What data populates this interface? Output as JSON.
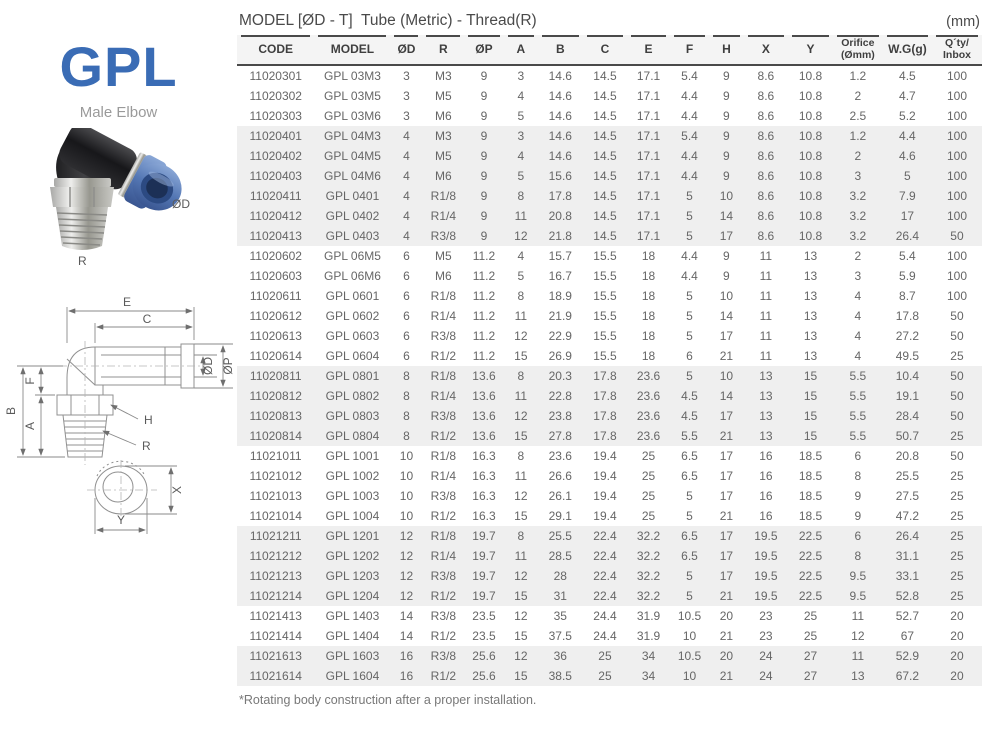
{
  "page": {
    "unit_label": "(mm)",
    "footnote": "*Rotating body construction after a proper installation."
  },
  "product": {
    "series": "GPL",
    "name": "Male Elbow",
    "brand_color": "#3a6cb5",
    "photo_labels": {
      "od": "ØD",
      "r": "R"
    },
    "drawing_labels": {
      "e": "E",
      "c": "C",
      "od": "ØD",
      "op": "ØP",
      "b": "B",
      "f": "F",
      "a": "A",
      "h": "H",
      "r": "R",
      "x": "X",
      "y": "Y"
    }
  },
  "table": {
    "title": "MODEL [ØD - T]  Tube (Metric) - Thread(R)",
    "columns": [
      "CODE",
      "MODEL",
      "ØD",
      "R",
      "ØP",
      "A",
      "B",
      "C",
      "E",
      "F",
      "H",
      "X",
      "Y",
      "Orifice\n(Ømm)",
      "W.G(g)",
      "Q´ty/\nInbox"
    ],
    "rows": [
      {
        "shaded": false,
        "cells": [
          "11020301",
          "GPL 03M3",
          "3",
          "M3",
          "9",
          "3",
          "14.6",
          "14.5",
          "17.1",
          "5.4",
          "9",
          "8.6",
          "10.8",
          "1.2",
          "4.5",
          "100"
        ]
      },
      {
        "shaded": false,
        "cells": [
          "11020302",
          "GPL 03M5",
          "3",
          "M5",
          "9",
          "4",
          "14.6",
          "14.5",
          "17.1",
          "4.4",
          "9",
          "8.6",
          "10.8",
          "2",
          "4.7",
          "100"
        ]
      },
      {
        "shaded": false,
        "cells": [
          "11020303",
          "GPL 03M6",
          "3",
          "M6",
          "9",
          "5",
          "14.6",
          "14.5",
          "17.1",
          "4.4",
          "9",
          "8.6",
          "10.8",
          "2.5",
          "5.2",
          "100"
        ]
      },
      {
        "shaded": true,
        "cells": [
          "11020401",
          "GPL 04M3",
          "4",
          "M3",
          "9",
          "3",
          "14.6",
          "14.5",
          "17.1",
          "5.4",
          "9",
          "8.6",
          "10.8",
          "1.2",
          "4.4",
          "100"
        ]
      },
      {
        "shaded": true,
        "cells": [
          "11020402",
          "GPL 04M5",
          "4",
          "M5",
          "9",
          "4",
          "14.6",
          "14.5",
          "17.1",
          "4.4",
          "9",
          "8.6",
          "10.8",
          "2",
          "4.6",
          "100"
        ]
      },
      {
        "shaded": true,
        "cells": [
          "11020403",
          "GPL 04M6",
          "4",
          "M6",
          "9",
          "5",
          "15.6",
          "14.5",
          "17.1",
          "4.4",
          "9",
          "8.6",
          "10.8",
          "3",
          "5",
          "100"
        ]
      },
      {
        "shaded": true,
        "cells": [
          "11020411",
          "GPL 0401",
          "4",
          "R1/8",
          "9",
          "8",
          "17.8",
          "14.5",
          "17.1",
          "5",
          "10",
          "8.6",
          "10.8",
          "3.2",
          "7.9",
          "100"
        ]
      },
      {
        "shaded": true,
        "cells": [
          "11020412",
          "GPL 0402",
          "4",
          "R1/4",
          "9",
          "11",
          "20.8",
          "14.5",
          "17.1",
          "5",
          "14",
          "8.6",
          "10.8",
          "3.2",
          "17",
          "100"
        ]
      },
      {
        "shaded": true,
        "cells": [
          "11020413",
          "GPL 0403",
          "4",
          "R3/8",
          "9",
          "12",
          "21.8",
          "14.5",
          "17.1",
          "5",
          "17",
          "8.6",
          "10.8",
          "3.2",
          "26.4",
          "50"
        ]
      },
      {
        "shaded": false,
        "cells": [
          "11020602",
          "GPL 06M5",
          "6",
          "M5",
          "11.2",
          "4",
          "15.7",
          "15.5",
          "18",
          "4.4",
          "9",
          "11",
          "13",
          "2",
          "5.4",
          "100"
        ]
      },
      {
        "shaded": false,
        "cells": [
          "11020603",
          "GPL 06M6",
          "6",
          "M6",
          "11.2",
          "5",
          "16.7",
          "15.5",
          "18",
          "4.4",
          "9",
          "11",
          "13",
          "3",
          "5.9",
          "100"
        ]
      },
      {
        "shaded": false,
        "cells": [
          "11020611",
          "GPL 0601",
          "6",
          "R1/8",
          "11.2",
          "8",
          "18.9",
          "15.5",
          "18",
          "5",
          "10",
          "11",
          "13",
          "4",
          "8.7",
          "100"
        ]
      },
      {
        "shaded": false,
        "cells": [
          "11020612",
          "GPL 0602",
          "6",
          "R1/4",
          "11.2",
          "11",
          "21.9",
          "15.5",
          "18",
          "5",
          "14",
          "11",
          "13",
          "4",
          "17.8",
          "50"
        ]
      },
      {
        "shaded": false,
        "cells": [
          "11020613",
          "GPL 0603",
          "6",
          "R3/8",
          "11.2",
          "12",
          "22.9",
          "15.5",
          "18",
          "5",
          "17",
          "11",
          "13",
          "4",
          "27.2",
          "50"
        ]
      },
      {
        "shaded": false,
        "cells": [
          "11020614",
          "GPL 0604",
          "6",
          "R1/2",
          "11.2",
          "15",
          "26.9",
          "15.5",
          "18",
          "6",
          "21",
          "11",
          "13",
          "4",
          "49.5",
          "25"
        ]
      },
      {
        "shaded": true,
        "cells": [
          "11020811",
          "GPL 0801",
          "8",
          "R1/8",
          "13.6",
          "8",
          "20.3",
          "17.8",
          "23.6",
          "5",
          "10",
          "13",
          "15",
          "5.5",
          "10.4",
          "50"
        ]
      },
      {
        "shaded": true,
        "cells": [
          "11020812",
          "GPL 0802",
          "8",
          "R1/4",
          "13.6",
          "11",
          "22.8",
          "17.8",
          "23.6",
          "4.5",
          "14",
          "13",
          "15",
          "5.5",
          "19.1",
          "50"
        ]
      },
      {
        "shaded": true,
        "cells": [
          "11020813",
          "GPL 0803",
          "8",
          "R3/8",
          "13.6",
          "12",
          "23.8",
          "17.8",
          "23.6",
          "4.5",
          "17",
          "13",
          "15",
          "5.5",
          "28.4",
          "50"
        ]
      },
      {
        "shaded": true,
        "cells": [
          "11020814",
          "GPL 0804",
          "8",
          "R1/2",
          "13.6",
          "15",
          "27.8",
          "17.8",
          "23.6",
          "5.5",
          "21",
          "13",
          "15",
          "5.5",
          "50.7",
          "25"
        ]
      },
      {
        "shaded": false,
        "cells": [
          "11021011",
          "GPL 1001",
          "10",
          "R1/8",
          "16.3",
          "8",
          "23.6",
          "19.4",
          "25",
          "6.5",
          "17",
          "16",
          "18.5",
          "6",
          "20.8",
          "50"
        ]
      },
      {
        "shaded": false,
        "cells": [
          "11021012",
          "GPL 1002",
          "10",
          "R1/4",
          "16.3",
          "11",
          "26.6",
          "19.4",
          "25",
          "6.5",
          "17",
          "16",
          "18.5",
          "8",
          "25.5",
          "25"
        ]
      },
      {
        "shaded": false,
        "cells": [
          "11021013",
          "GPL 1003",
          "10",
          "R3/8",
          "16.3",
          "12",
          "26.1",
          "19.4",
          "25",
          "5",
          "17",
          "16",
          "18.5",
          "9",
          "27.5",
          "25"
        ]
      },
      {
        "shaded": false,
        "cells": [
          "11021014",
          "GPL 1004",
          "10",
          "R1/2",
          "16.3",
          "15",
          "29.1",
          "19.4",
          "25",
          "5",
          "21",
          "16",
          "18.5",
          "9",
          "47.2",
          "25"
        ]
      },
      {
        "shaded": true,
        "cells": [
          "11021211",
          "GPL 1201",
          "12",
          "R1/8",
          "19.7",
          "8",
          "25.5",
          "22.4",
          "32.2",
          "6.5",
          "17",
          "19.5",
          "22.5",
          "6",
          "26.4",
          "25"
        ]
      },
      {
        "shaded": true,
        "cells": [
          "11021212",
          "GPL 1202",
          "12",
          "R1/4",
          "19.7",
          "11",
          "28.5",
          "22.4",
          "32.2",
          "6.5",
          "17",
          "19.5",
          "22.5",
          "8",
          "31.1",
          "25"
        ]
      },
      {
        "shaded": true,
        "cells": [
          "11021213",
          "GPL 1203",
          "12",
          "R3/8",
          "19.7",
          "12",
          "28",
          "22.4",
          "32.2",
          "5",
          "17",
          "19.5",
          "22.5",
          "9.5",
          "33.1",
          "25"
        ]
      },
      {
        "shaded": true,
        "cells": [
          "11021214",
          "GPL 1204",
          "12",
          "R1/2",
          "19.7",
          "15",
          "31",
          "22.4",
          "32.2",
          "5",
          "21",
          "19.5",
          "22.5",
          "9.5",
          "52.8",
          "25"
        ]
      },
      {
        "shaded": false,
        "cells": [
          "11021413",
          "GPL 1403",
          "14",
          "R3/8",
          "23.5",
          "12",
          "35",
          "24.4",
          "31.9",
          "10.5",
          "20",
          "23",
          "25",
          "11",
          "52.7",
          "20"
        ]
      },
      {
        "shaded": false,
        "cells": [
          "11021414",
          "GPL 1404",
          "14",
          "R1/2",
          "23.5",
          "15",
          "37.5",
          "24.4",
          "31.9",
          "10",
          "21",
          "23",
          "25",
          "12",
          "67",
          "20"
        ]
      },
      {
        "shaded": true,
        "cells": [
          "11021613",
          "GPL 1603",
          "16",
          "R3/8",
          "25.6",
          "12",
          "36",
          "25",
          "34",
          "10.5",
          "20",
          "24",
          "27",
          "11",
          "52.9",
          "20"
        ]
      },
      {
        "shaded": true,
        "cells": [
          "11021614",
          "GPL 1604",
          "16",
          "R1/2",
          "25.6",
          "15",
          "38.5",
          "25",
          "34",
          "10",
          "21",
          "24",
          "27",
          "13",
          "67.2",
          "20"
        ]
      }
    ]
  }
}
